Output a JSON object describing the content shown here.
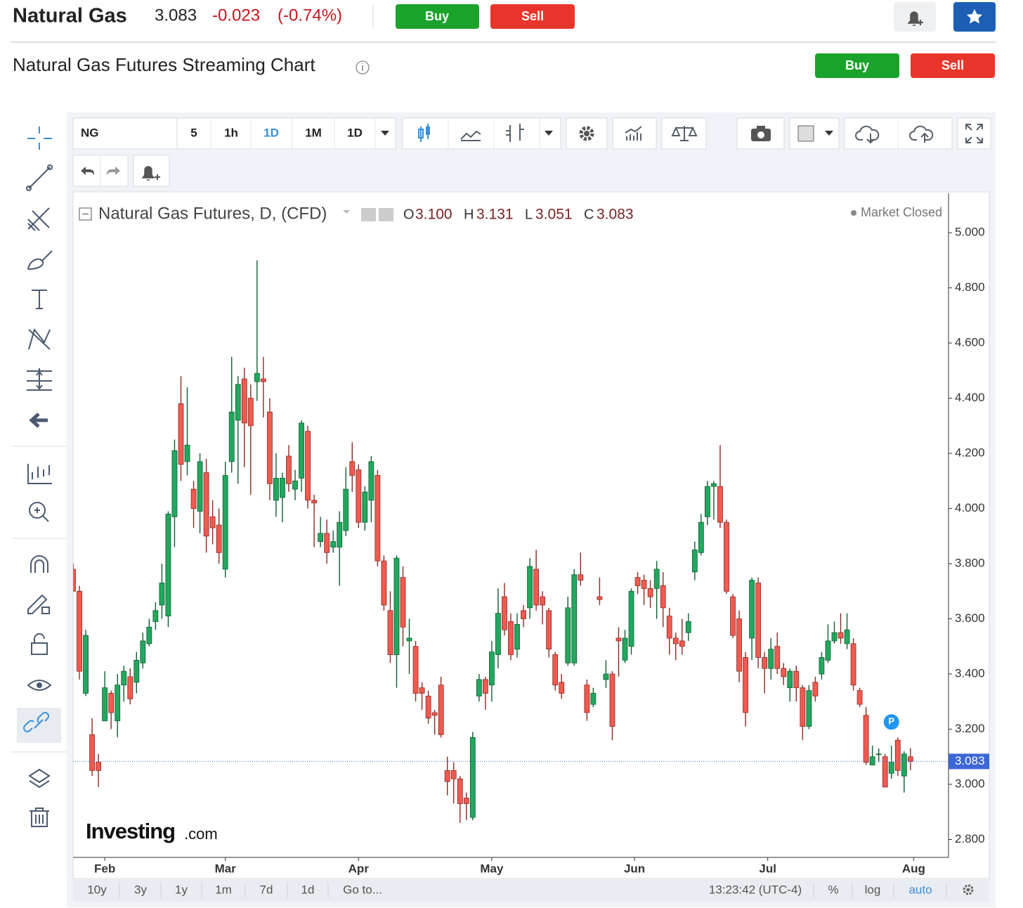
{
  "header": {
    "symbol": "Natural Gas",
    "price": "3.083",
    "change": "-0.023",
    "change_pct": "(-0.74%)",
    "buy": "Buy",
    "sell": "Sell"
  },
  "subheader": {
    "title": "Natural Gas Futures Streaming Chart",
    "buy": "Buy",
    "sell": "Sell"
  },
  "toolbar": {
    "symbol": "NG",
    "intervals": [
      "5",
      "1h",
      "1D",
      "1M",
      "1D"
    ]
  },
  "legend": {
    "title": "Natural Gas Futures, D, (CFD)",
    "o_label": "O",
    "o": "3.100",
    "h_label": "H",
    "h": "3.131",
    "l_label": "L",
    "l": "3.051",
    "c_label": "C",
    "c": "3.083",
    "status": "Market Closed"
  },
  "marker": "P",
  "watermark": {
    "brand": "Investing",
    "domain": ".com"
  },
  "footer": {
    "ranges": [
      "10y",
      "3y",
      "1y",
      "1m",
      "7d",
      "1d"
    ],
    "goto": "Go to...",
    "time": "13:23:42 (UTC-4)",
    "options": [
      "%",
      "log",
      "auto"
    ]
  },
  "chart_data": {
    "type": "candlestick",
    "up_color": "#22a85e",
    "down_color": "#ef5b50",
    "up_border": "#0f5e33",
    "down_border": "#8c2a23",
    "last_price_color": "#3d67d6",
    "xlim": [
      0,
      138
    ],
    "xticks": [
      {
        "value": 5,
        "label": "Feb"
      },
      {
        "value": 24,
        "label": "Mar"
      },
      {
        "value": 45,
        "label": "Apr"
      },
      {
        "value": 66,
        "label": "May"
      },
      {
        "value": 88.5,
        "label": "Jun"
      },
      {
        "value": 109.5,
        "label": "Jul"
      },
      {
        "value": 132.5,
        "label": "Aug"
      }
    ],
    "ylim": [
      2.735,
      5.143
    ],
    "yticks": [
      {
        "value": 2.8,
        "label": "2.800"
      },
      {
        "value": 3,
        "label": "3.000"
      },
      {
        "value": 3.2,
        "label": "3.200"
      },
      {
        "value": 3.4,
        "label": "3.400"
      },
      {
        "value": 3.6,
        "label": "3.600"
      },
      {
        "value": 3.8,
        "label": "3.800"
      },
      {
        "value": 4,
        "label": "4.000"
      },
      {
        "value": 4.2,
        "label": "4.200"
      },
      {
        "value": 4.4,
        "label": "4.400"
      },
      {
        "value": 4.6,
        "label": "4.600"
      },
      {
        "value": 4.8,
        "label": "4.800"
      },
      {
        "value": 5,
        "label": "5.000"
      }
    ],
    "open": [
      3.78,
      3.7,
      3.33,
      3.18,
      3.08,
      3.23,
      3.33,
      3.23,
      3.36,
      3.39,
      3.37,
      3.44,
      3.51,
      3.59,
      3.65,
      3.61,
      3.97,
      4.38,
      4.17,
      4.07,
      3.99,
      4.13,
      3.97,
      3.94,
      3.78,
      4.17,
      4.32,
      4.47,
      4.4,
      4.46,
      4.47,
      4.35,
      4.03,
      4.04,
      4.19,
      4.07,
      4.11,
      4.28,
      4.03,
      3.88,
      3.91,
      3.86,
      3.86,
      3.92,
      4.17,
      4.14,
      3.95,
      4.03,
      4.12,
      3.81,
      3.63,
      3.47,
      3.75,
      3.52,
      3.5,
      3.35,
      3.32,
      3.26,
      3.36,
      3.05,
      3.05,
      3.02,
      2.95,
      2.88,
      3.32,
      3.38,
      3.36,
      3.47,
      3.68,
      3.59,
      3.49,
      3.63,
      3.64,
      3.78,
      3.68,
      3.63,
      3.47,
      3.37,
      3.44,
      3.44,
      3.76,
      3.36,
      3.29,
      3.68,
      3.38,
      3.4,
      3.53,
      3.45,
      3.5,
      3.75,
      3.74,
      3.71,
      3.71,
      3.72,
      3.61,
      3.53,
      3.52,
      3.55,
      3.77,
      3.84,
      3.97,
      4.08,
      4.08,
      3.95,
      3.68,
      3.6,
      3.46,
      3.53,
      3.73,
      3.46,
      3.42,
      3.5,
      3.42,
      3.35,
      3.41,
      3.35,
      3.21,
      3.37,
      3.4,
      3.45,
      3.52,
      3.55,
      3.51,
      3.51,
      3.34,
      3.25,
      3.07,
      3.11,
      3.1,
      3.04,
      3.16,
      3.03,
      3.1
    ],
    "high": [
      3.8,
      3.72,
      3.56,
      3.24,
      3.11,
      3.41,
      3.34,
      3.4,
      3.43,
      3.42,
      3.48,
      3.55,
      3.6,
      3.66,
      3.8,
      3.99,
      4.25,
      4.48,
      4.44,
      4.1,
      4.2,
      4.18,
      4.03,
      4.0,
      4.17,
      4.55,
      4.48,
      4.51,
      4.45,
      4.9,
      4.55,
      4.4,
      4.2,
      4.13,
      4.23,
      4.14,
      4.32,
      4.3,
      4.05,
      3.97,
      3.96,
      3.92,
      3.99,
      4.15,
      4.24,
      4.16,
      4.08,
      4.19,
      4.14,
      3.83,
      3.7,
      3.83,
      3.79,
      3.6,
      3.52,
      3.37,
      3.34,
      3.27,
      3.39,
      3.1,
      3.08,
      3.03,
      2.97,
      3.19,
      3.4,
      3.39,
      3.52,
      3.71,
      3.73,
      3.62,
      3.62,
      3.65,
      3.82,
      3.85,
      3.7,
      3.64,
      3.48,
      3.4,
      3.68,
      3.78,
      3.84,
      3.38,
      3.35,
      3.75,
      3.45,
      3.41,
      3.57,
      3.56,
      3.71,
      3.77,
      3.76,
      3.74,
      3.81,
      3.77,
      3.64,
      3.55,
      3.6,
      3.62,
      3.88,
      3.98,
      4.1,
      4.1,
      4.23,
      3.96,
      3.69,
      3.63,
      3.48,
      3.75,
      3.75,
      3.48,
      3.53,
      3.55,
      3.44,
      3.42,
      3.43,
      3.36,
      3.36,
      3.39,
      3.48,
      3.58,
      3.59,
      3.62,
      3.62,
      3.53,
      3.35,
      3.28,
      3.14,
      3.13,
      3.11,
      3.14,
      3.17,
      3.12,
      3.131
    ],
    "low": [
      3.7,
      3.38,
      3.32,
      3.03,
      2.99,
      3.23,
      3.2,
      3.17,
      3.3,
      3.29,
      3.33,
      3.42,
      3.5,
      3.56,
      3.6,
      3.57,
      3.86,
      4.1,
      4.12,
      3.93,
      3.91,
      3.84,
      3.87,
      3.8,
      3.75,
      4.13,
      4.09,
      4.15,
      4.05,
      4.39,
      4.33,
      4.03,
      3.97,
      3.95,
      4.06,
      4.03,
      4.06,
      4.0,
      3.86,
      3.86,
      3.8,
      3.84,
      3.72,
      3.9,
      4.06,
      3.93,
      3.92,
      3.95,
      3.79,
      3.63,
      3.44,
      3.35,
      3.5,
      3.4,
      3.3,
      3.27,
      3.22,
      3.18,
      3.17,
      2.96,
      2.93,
      2.86,
      2.87,
      2.87,
      3.3,
      3.27,
      3.3,
      3.42,
      3.54,
      3.45,
      3.46,
      3.57,
      3.6,
      3.63,
      3.58,
      3.46,
      3.34,
      3.31,
      3.43,
      3.43,
      3.72,
      3.23,
      3.28,
      3.65,
      3.35,
      3.16,
      3.39,
      3.44,
      3.47,
      3.69,
      3.65,
      3.64,
      3.6,
      3.57,
      3.47,
      3.45,
      3.47,
      3.52,
      3.74,
      3.83,
      3.94,
      3.96,
      3.93,
      3.69,
      3.53,
      3.37,
      3.21,
      3.45,
      3.42,
      3.33,
      3.38,
      3.4,
      3.36,
      3.3,
      3.3,
      3.16,
      3.2,
      3.3,
      3.38,
      3.44,
      3.51,
      3.51,
      3.49,
      3.34,
      3.28,
      3.07,
      3.07,
      3.08,
      2.99,
      3.02,
      3.03,
      2.97,
      3.051
    ],
    "close": [
      3.7,
      3.41,
      3.54,
      3.05,
      3.05,
      3.35,
      3.26,
      3.36,
      3.41,
      3.31,
      3.45,
      3.52,
      3.57,
      3.63,
      3.73,
      3.98,
      4.21,
      4.16,
      4.23,
      4.0,
      4.17,
      3.9,
      3.93,
      3.84,
      4.12,
      4.35,
      4.45,
      4.31,
      4.3,
      4.49,
      4.46,
      4.09,
      4.11,
      4.11,
      4.09,
      4.1,
      4.31,
      4.03,
      4.02,
      3.91,
      3.84,
      3.88,
      3.95,
      4.07,
      4.12,
      3.95,
      4.06,
      4.17,
      3.81,
      3.65,
      3.47,
      3.82,
      3.57,
      3.53,
      3.33,
      3.33,
      3.24,
      3.25,
      3.18,
      3.01,
      3.02,
      2.93,
      2.93,
      3.17,
      3.38,
      3.33,
      3.48,
      3.62,
      3.56,
      3.47,
      3.58,
      3.6,
      3.79,
      3.65,
      3.65,
      3.49,
      3.36,
      3.33,
      3.64,
      3.76,
      3.74,
      3.26,
      3.33,
      3.67,
      3.4,
      3.21,
      3.52,
      3.53,
      3.7,
      3.72,
      3.71,
      3.68,
      3.78,
      3.64,
      3.53,
      3.51,
      3.5,
      3.59,
      3.85,
      3.95,
      4.08,
      4.09,
      3.95,
      3.7,
      3.54,
      3.41,
      3.26,
      3.74,
      3.46,
      3.42,
      3.49,
      3.42,
      3.39,
      3.41,
      3.35,
      3.21,
      3.34,
      3.32,
      3.46,
      3.52,
      3.55,
      3.53,
      3.56,
      3.36,
      3.29,
      3.08,
      3.1,
      3.11,
      2.99,
      3.08,
      3.05,
      3.11,
      3.083
    ]
  }
}
